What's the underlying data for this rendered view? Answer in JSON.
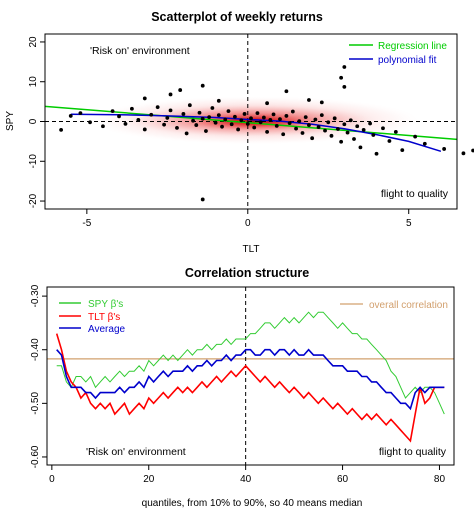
{
  "chart_data": [
    {
      "type": "scatter",
      "title": "Scatterplot of weekly returns",
      "xlabel": "TLT",
      "ylabel": "SPY",
      "xlim": [
        -6.3,
        6.5
      ],
      "ylim": [
        -22,
        22
      ],
      "xticks": [
        -5,
        0,
        5
      ],
      "yticks": [
        -20,
        -10,
        0,
        10,
        20
      ],
      "vline_x": 0,
      "hline_y": 0,
      "annotations": {
        "top_left": "'Risk on' environment",
        "bottom_right": "flight to quality"
      },
      "legend": {
        "position": "top-right",
        "entries": [
          {
            "label": "Regression line",
            "color": "#00cc00"
          },
          {
            "label": "polynomial fit",
            "color": "#0000cc"
          }
        ]
      },
      "regression_line": {
        "x": [
          -6.3,
          6.5
        ],
        "y": [
          3.8,
          -4.5
        ]
      },
      "polynomial_fit": {
        "x": [
          -5.5,
          -4,
          -2.5,
          -1,
          0,
          1,
          2,
          3,
          4,
          5,
          6
        ],
        "y": [
          1.8,
          1.7,
          1.4,
          1.0,
          0.5,
          0.1,
          -0.7,
          -1.8,
          -3.3,
          -5.0,
          -7.5
        ]
      },
      "points": [
        [
          -5.8,
          -2.1
        ],
        [
          -5.5,
          1.4
        ],
        [
          -5.2,
          2.1
        ],
        [
          -4.9,
          -0.2
        ],
        [
          -4.5,
          -1.2
        ],
        [
          -4.2,
          2.6
        ],
        [
          -4.0,
          1.3
        ],
        [
          -3.8,
          -0.6
        ],
        [
          -3.6,
          3.2
        ],
        [
          -3.4,
          0.4
        ],
        [
          -3.2,
          -2.0
        ],
        [
          -3.0,
          1.7
        ],
        [
          -2.8,
          3.6
        ],
        [
          -2.6,
          -0.8
        ],
        [
          -2.5,
          0.9
        ],
        [
          -2.4,
          2.8
        ],
        [
          -2.2,
          -1.6
        ],
        [
          -2.0,
          1.9
        ],
        [
          -1.9,
          -3.0
        ],
        [
          -1.8,
          4.1
        ],
        [
          -1.7,
          0.2
        ],
        [
          -1.6,
          -0.9
        ],
        [
          -1.5,
          2.2
        ],
        [
          -1.4,
          0.7
        ],
        [
          -1.3,
          -2.4
        ],
        [
          -1.2,
          1.1
        ],
        [
          -1.1,
          3.4
        ],
        [
          -1.0,
          -0.3
        ],
        [
          -0.9,
          1.6
        ],
        [
          -0.8,
          -1.3
        ],
        [
          -0.7,
          0.5
        ],
        [
          -0.6,
          2.6
        ],
        [
          -0.5,
          -0.7
        ],
        [
          -0.4,
          1.2
        ],
        [
          -0.3,
          -2.0
        ],
        [
          -0.2,
          0.3
        ],
        [
          -0.1,
          1.9
        ],
        [
          0.0,
          -0.6
        ],
        [
          0.1,
          0.8
        ],
        [
          0.2,
          -1.5
        ],
        [
          0.3,
          2.1
        ],
        [
          0.4,
          -0.2
        ],
        [
          0.5,
          1.0
        ],
        [
          0.6,
          -2.6
        ],
        [
          0.7,
          0.4
        ],
        [
          0.8,
          1.8
        ],
        [
          0.9,
          -1.1
        ],
        [
          1.0,
          0.6
        ],
        [
          1.1,
          -3.2
        ],
        [
          1.2,
          1.4
        ],
        [
          1.3,
          -0.4
        ],
        [
          1.4,
          2.5
        ],
        [
          1.5,
          -1.8
        ],
        [
          1.6,
          0.1
        ],
        [
          1.7,
          -2.9
        ],
        [
          1.8,
          1.1
        ],
        [
          1.9,
          -0.9
        ],
        [
          2.0,
          -4.2
        ],
        [
          2.1,
          0.5
        ],
        [
          2.2,
          -1.4
        ],
        [
          2.3,
          1.6
        ],
        [
          2.4,
          -2.3
        ],
        [
          2.5,
          -0.2
        ],
        [
          2.6,
          -3.6
        ],
        [
          2.7,
          0.8
        ],
        [
          2.8,
          -1.9
        ],
        [
          2.9,
          -5.1
        ],
        [
          3.0,
          -0.7
        ],
        [
          3.1,
          -2.8
        ],
        [
          3.2,
          0.3
        ],
        [
          3.3,
          -4.4
        ],
        [
          3.4,
          -1.2
        ],
        [
          3.5,
          -6.5
        ],
        [
          3.6,
          -2.1
        ],
        [
          3.8,
          -0.5
        ],
        [
          3.9,
          -3.4
        ],
        [
          4.0,
          -8.1
        ],
        [
          4.2,
          -1.7
        ],
        [
          4.4,
          -4.9
        ],
        [
          4.6,
          -2.6
        ],
        [
          4.8,
          -7.2
        ],
        [
          5.2,
          -3.8
        ],
        [
          5.5,
          -5.6
        ],
        [
          6.1,
          -6.9
        ],
        [
          6.7,
          -8.0
        ],
        [
          7.0,
          -7.3
        ],
        [
          8.8,
          -0.6
        ],
        [
          3.0,
          13.7
        ],
        [
          1.2,
          7.6
        ],
        [
          -1.4,
          9.0
        ],
        [
          -2.4,
          6.8
        ],
        [
          -2.1,
          7.9
        ],
        [
          3.0,
          8.7
        ],
        [
          2.9,
          11.0
        ],
        [
          -1.4,
          -19.6
        ],
        [
          -3.2,
          5.8
        ],
        [
          0.6,
          4.6
        ],
        [
          -0.9,
          5.2
        ],
        [
          1.9,
          5.4
        ],
        [
          2.3,
          4.8
        ]
      ]
    },
    {
      "type": "line",
      "title": "Correlation structure",
      "xlabel": "quantiles, from 10% to 90%, so 40 means median",
      "ylabel": "",
      "xlim": [
        -1,
        83
      ],
      "ylim": [
        -0.615,
        -0.283
      ],
      "xticks": [
        0,
        20,
        40,
        60,
        80
      ],
      "yticks": [
        -0.3,
        -0.4,
        -0.5,
        -0.6
      ],
      "ytick_labels": [
        "-0.30",
        "-0.40",
        "-0.50",
        "-0.60"
      ],
      "vline_x": 40,
      "overall_correlation": -0.417,
      "annotations": {
        "bottom_left": "'Risk on' environment",
        "bottom_right": "flight to quality"
      },
      "legend_left": {
        "position": "top-left",
        "entries": [
          {
            "label": "SPY β's",
            "color": "#33cc33"
          },
          {
            "label": "TLT β's",
            "color": "#ff0000"
          },
          {
            "label": "Average",
            "color": "#0000cc"
          }
        ]
      },
      "legend_right": {
        "position": "top-right",
        "entries": [
          {
            "label": "overall correlation",
            "color": "#d2a06e"
          }
        ]
      },
      "x": [
        1,
        2,
        3,
        4,
        5,
        6,
        7,
        8,
        9,
        10,
        11,
        12,
        13,
        14,
        15,
        16,
        17,
        18,
        19,
        20,
        21,
        22,
        23,
        24,
        25,
        26,
        27,
        28,
        29,
        30,
        31,
        32,
        33,
        34,
        35,
        36,
        37,
        38,
        39,
        40,
        41,
        42,
        43,
        44,
        45,
        46,
        47,
        48,
        49,
        50,
        51,
        52,
        53,
        54,
        55,
        56,
        57,
        58,
        59,
        60,
        61,
        62,
        63,
        64,
        65,
        66,
        67,
        68,
        69,
        70,
        71,
        72,
        73,
        74,
        75,
        76,
        77,
        78,
        79,
        80,
        81
      ],
      "series": [
        {
          "name": "SPY β's",
          "color": "#33cc33",
          "values": [
            -0.43,
            -0.43,
            -0.46,
            -0.47,
            -0.45,
            -0.45,
            -0.46,
            -0.45,
            -0.47,
            -0.46,
            -0.45,
            -0.46,
            -0.45,
            -0.44,
            -0.45,
            -0.44,
            -0.44,
            -0.43,
            -0.44,
            -0.42,
            -0.43,
            -0.42,
            -0.41,
            -0.42,
            -0.41,
            -0.42,
            -0.41,
            -0.4,
            -0.41,
            -0.4,
            -0.4,
            -0.39,
            -0.4,
            -0.39,
            -0.39,
            -0.38,
            -0.39,
            -0.38,
            -0.38,
            -0.38,
            -0.37,
            -0.37,
            -0.36,
            -0.35,
            -0.35,
            -0.36,
            -0.35,
            -0.34,
            -0.35,
            -0.34,
            -0.35,
            -0.34,
            -0.33,
            -0.34,
            -0.33,
            -0.33,
            -0.34,
            -0.35,
            -0.36,
            -0.35,
            -0.36,
            -0.37,
            -0.37,
            -0.38,
            -0.38,
            -0.39,
            -0.4,
            -0.41,
            -0.42,
            -0.44,
            -0.45,
            -0.47,
            -0.49,
            -0.48,
            -0.47,
            -0.48,
            -0.47,
            -0.47,
            -0.48,
            -0.5,
            -0.52
          ]
        },
        {
          "name": "TLT β's",
          "color": "#ff0000",
          "values": [
            -0.37,
            -0.4,
            -0.44,
            -0.46,
            -0.47,
            -0.49,
            -0.48,
            -0.5,
            -0.51,
            -0.5,
            -0.51,
            -0.5,
            -0.52,
            -0.51,
            -0.5,
            -0.52,
            -0.51,
            -0.5,
            -0.51,
            -0.49,
            -0.5,
            -0.49,
            -0.48,
            -0.49,
            -0.48,
            -0.47,
            -0.48,
            -0.47,
            -0.48,
            -0.47,
            -0.46,
            -0.47,
            -0.46,
            -0.45,
            -0.46,
            -0.45,
            -0.44,
            -0.45,
            -0.44,
            -0.43,
            -0.44,
            -0.45,
            -0.46,
            -0.45,
            -0.46,
            -0.47,
            -0.46,
            -0.47,
            -0.48,
            -0.47,
            -0.48,
            -0.49,
            -0.48,
            -0.49,
            -0.5,
            -0.49,
            -0.5,
            -0.51,
            -0.5,
            -0.51,
            -0.52,
            -0.51,
            -0.52,
            -0.53,
            -0.52,
            -0.53,
            -0.52,
            -0.53,
            -0.54,
            -0.53,
            -0.54,
            -0.55,
            -0.56,
            -0.57,
            -0.52,
            -0.47,
            -0.5,
            -0.49,
            -0.47,
            -0.47,
            -0.47
          ]
        },
        {
          "name": "Average",
          "color": "#0000cc",
          "values": [
            -0.4,
            -0.41,
            -0.45,
            -0.47,
            -0.47,
            -0.47,
            -0.48,
            -0.48,
            -0.49,
            -0.48,
            -0.48,
            -0.48,
            -0.48,
            -0.47,
            -0.48,
            -0.47,
            -0.47,
            -0.46,
            -0.47,
            -0.45,
            -0.46,
            -0.45,
            -0.44,
            -0.45,
            -0.44,
            -0.44,
            -0.44,
            -0.43,
            -0.44,
            -0.43,
            -0.43,
            -0.42,
            -0.43,
            -0.42,
            -0.42,
            -0.41,
            -0.42,
            -0.41,
            -0.41,
            -0.4,
            -0.4,
            -0.41,
            -0.41,
            -0.4,
            -0.4,
            -0.41,
            -0.4,
            -0.4,
            -0.41,
            -0.4,
            -0.41,
            -0.41,
            -0.4,
            -0.41,
            -0.41,
            -0.41,
            -0.42,
            -0.43,
            -0.43,
            -0.43,
            -0.44,
            -0.44,
            -0.44,
            -0.45,
            -0.45,
            -0.46,
            -0.46,
            -0.47,
            -0.48,
            -0.48,
            -0.49,
            -0.5,
            -0.5,
            -0.51,
            -0.48,
            -0.47,
            -0.48,
            -0.47,
            -0.47,
            -0.47,
            -0.47
          ]
        }
      ]
    }
  ]
}
